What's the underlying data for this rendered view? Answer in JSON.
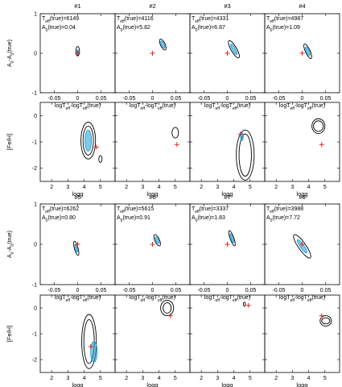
{
  "chart_data": {
    "type": "contour",
    "figure": {
      "blocks": [
        {
          "panel_labels": [
            "#1",
            "#2",
            "#3",
            "#4"
          ],
          "top": {
            "ylabel": "A0-A0(true)",
            "xlabel": "logTeff-logTeff(true)",
            "xlim": [
              -0.08,
              0.08
            ],
            "ylim": [
              -1,
              1
            ],
            "xticks": [
              -0.05,
              0,
              0.05
            ],
            "xtick_labels": [
              "-0.05",
              "0",
              "0.05"
            ],
            "yticks": [
              -1,
              0,
              1
            ],
            "ytick_labels": [
              "-1",
              "0",
              "1"
            ]
          },
          "bottom": {
            "ylabel": "[Fe/H]",
            "xlabel": "logg",
            "xlim": [
              1.3,
              5.9
            ],
            "ylim": [
              -2.5,
              0.5
            ],
            "xticks": [
              2,
              3,
              4,
              5
            ],
            "xtick_labels": [
              "2",
              "3",
              "4",
              "5"
            ],
            "yticks": [
              -2,
              -1,
              0
            ],
            "ytick_labels": [
              "-2",
              "-1",
              "0"
            ]
          }
        },
        {
          "panel_labels": [
            "#5",
            "#6",
            "#7",
            "#8"
          ],
          "top": {
            "ylabel": "A0-A0(true)",
            "xlabel": "logTeff-logTeff(true)",
            "xlim": [
              -0.08,
              0.08
            ],
            "ylim": [
              -1,
              1
            ],
            "xticks": [
              -0.05,
              0,
              0.05
            ],
            "xtick_labels": [
              "-0.05",
              "0",
              "0.05"
            ],
            "yticks": [
              -1,
              0,
              1
            ],
            "ytick_labels": [
              "-1",
              "0",
              "1"
            ]
          },
          "bottom": {
            "ylabel": "[Fe/H]",
            "xlabel": "logg",
            "xlim": [
              1.3,
              5.9
            ],
            "ylim": [
              -2.5,
              0.5
            ],
            "xticks": [
              2,
              3,
              4,
              5
            ],
            "xtick_labels": [
              "2",
              "3",
              "4",
              "5"
            ],
            "yticks": [
              -2,
              -1,
              0
            ],
            "ytick_labels": [
              "-2",
              "-1",
              "0"
            ]
          }
        }
      ]
    },
    "stars": [
      {
        "label": "#1",
        "teff_text": "6149",
        "a0_text": "0.04",
        "top": {
          "true": [
            0,
            0
          ],
          "contours": [
            {
              "center": [
                0.0,
                0.05
              ],
              "half_width": [
                0.004,
                0.12
              ],
              "angle": 0,
              "style": "dark"
            },
            {
              "center": [
                0.0,
                0.03
              ],
              "half_width": [
                0.002,
                0.06
              ],
              "angle": 0,
              "style": "blue"
            }
          ]
        },
        "bottom": {
          "true": [
            4.75,
            -1.2
          ],
          "contours": [
            {
              "center": [
                4.25,
                -0.95
              ],
              "half_width": [
                0.45,
                0.7
              ],
              "angle": 0,
              "style": "dark"
            },
            {
              "center": [
                4.25,
                -0.95
              ],
              "half_width": [
                0.32,
                0.55
              ],
              "angle": 0,
              "style": "dark"
            },
            {
              "center": [
                4.25,
                -0.95
              ],
              "half_width": [
                0.2,
                0.4
              ],
              "angle": 0,
              "style": "blue"
            },
            {
              "center": [
                5.0,
                -1.65
              ],
              "half_width": [
                0.1,
                0.13
              ],
              "angle": 0,
              "style": "dark"
            }
          ]
        }
      },
      {
        "label": "#2",
        "teff_text": "4116",
        "a0_text": "5.82",
        "top": {
          "true": [
            0,
            0
          ],
          "contours": [
            {
              "center": [
                0.022,
                0.22
              ],
              "half_width": [
                0.005,
                0.15
              ],
              "angle": 25,
              "style": "dark"
            },
            {
              "center": [
                0.022,
                0.22
              ],
              "half_width": [
                0.003,
                0.1
              ],
              "angle": 25,
              "style": "blue"
            }
          ]
        },
        "bottom": {
          "true": [
            5.1,
            -1.1
          ],
          "contours": [
            {
              "center": [
                5.0,
                -0.65
              ],
              "half_width": [
                0.2,
                0.2
              ],
              "angle": 0,
              "style": "dark"
            }
          ]
        }
      },
      {
        "label": "#3",
        "teff_text": "4331",
        "a0_text": "6.87",
        "top": {
          "true": [
            0,
            0
          ],
          "contours": [
            {
              "center": [
                0.014,
                0.1
              ],
              "half_width": [
                0.006,
                0.25
              ],
              "angle": 30,
              "style": "dark"
            },
            {
              "center": [
                0.014,
                0.1
              ],
              "half_width": [
                0.003,
                0.15
              ],
              "angle": 30,
              "style": "blue"
            }
          ]
        },
        "bottom": {
          "true": [
            4.4,
            -0.7
          ],
          "contours": [
            {
              "center": [
                4.7,
                -1.5
              ],
              "half_width": [
                0.55,
                0.95
              ],
              "angle": 0,
              "style": "dark"
            },
            {
              "center": [
                4.7,
                -1.5
              ],
              "half_width": [
                0.38,
                0.8
              ],
              "angle": 0,
              "style": "dark"
            },
            {
              "center": [
                4.5,
                -0.8
              ],
              "half_width": [
                0.08,
                0.15
              ],
              "angle": 0,
              "style": "blue"
            }
          ]
        }
      },
      {
        "label": "#4",
        "teff_text": "4987",
        "a0_text": "1.09",
        "top": {
          "true": [
            0,
            0
          ],
          "contours": [
            {
              "center": [
                0.012,
                0.05
              ],
              "half_width": [
                0.005,
                0.2
              ],
              "angle": 25,
              "style": "dark"
            },
            {
              "center": [
                0.012,
                0.05
              ],
              "half_width": [
                0.003,
                0.12
              ],
              "angle": 25,
              "style": "blue"
            }
          ]
        },
        "bottom": {
          "true": [
            4.8,
            -1.1
          ],
          "contours": [
            {
              "center": [
                4.6,
                -0.4
              ],
              "half_width": [
                0.4,
                0.28
              ],
              "angle": 0,
              "style": "dark"
            },
            {
              "center": [
                4.6,
                -0.4
              ],
              "half_width": [
                0.3,
                0.2
              ],
              "angle": 0,
              "style": "dark"
            }
          ]
        }
      },
      {
        "label": "#5",
        "teff_text": "6262",
        "a0_text": "0.80",
        "top": {
          "true": [
            0,
            0
          ],
          "contours": [
            {
              "center": [
                -0.003,
                -0.1
              ],
              "half_width": [
                0.004,
                0.18
              ],
              "angle": 15,
              "style": "dark"
            },
            {
              "center": [
                -0.003,
                -0.1
              ],
              "half_width": [
                0.002,
                0.1
              ],
              "angle": 15,
              "style": "blue"
            }
          ]
        },
        "bottom": {
          "true": [
            4.4,
            -1.5
          ],
          "contours": [
            {
              "center": [
                4.3,
                -1.3
              ],
              "half_width": [
                0.45,
                1.05
              ],
              "angle": 0,
              "style": "dark"
            },
            {
              "center": [
                4.3,
                -1.3
              ],
              "half_width": [
                0.32,
                0.85
              ],
              "angle": 0,
              "style": "dark"
            },
            {
              "center": [
                4.6,
                -1.7
              ],
              "half_width": [
                0.2,
                0.4
              ],
              "angle": 0,
              "style": "blue"
            }
          ]
        }
      },
      {
        "label": "#6",
        "teff_text": "5615",
        "a0_text": "0.91",
        "top": {
          "true": [
            0,
            0
          ],
          "contours": [
            {
              "center": [
                0.01,
                0.1
              ],
              "half_width": [
                0.005,
                0.15
              ],
              "angle": 25,
              "style": "dark"
            },
            {
              "center": [
                0.01,
                0.1
              ],
              "half_width": [
                0.003,
                0.09
              ],
              "angle": 25,
              "style": "blue"
            }
          ]
        },
        "bottom": {
          "true": [
            4.7,
            -0.3
          ],
          "contours": [
            {
              "center": [
                4.5,
                0.0
              ],
              "half_width": [
                0.4,
                0.3
              ],
              "angle": 0,
              "style": "dark"
            },
            {
              "center": [
                4.5,
                0.0
              ],
              "half_width": [
                0.25,
                0.2
              ],
              "angle": 0,
              "style": "dark"
            }
          ]
        }
      },
      {
        "label": "#7",
        "teff_text": "3337",
        "a0_text": "1.83",
        "top": {
          "true": [
            0,
            0
          ],
          "contours": [
            {
              "center": [
                0.01,
                0.15
              ],
              "half_width": [
                0.004,
                0.2
              ],
              "angle": 20,
              "style": "dark"
            },
            {
              "center": [
                0.01,
                0.15
              ],
              "half_width": [
                0.002,
                0.12
              ],
              "angle": 20,
              "style": "blue"
            }
          ]
        },
        "bottom": {
          "true": [
            4.9,
            0.1
          ],
          "contours": [
            {
              "center": [
                4.65,
                0.15
              ],
              "half_width": [
                0.06,
                0.08
              ],
              "angle": 0,
              "style": "dark"
            }
          ]
        }
      },
      {
        "label": "#8",
        "teff_text": "3988",
        "a0_text": "7.72",
        "top": {
          "true": [
            0,
            0
          ],
          "contours": [
            {
              "center": [
                0.0,
                -0.05
              ],
              "half_width": [
                0.008,
                0.35
              ],
              "angle": 35,
              "style": "dark"
            },
            {
              "center": [
                0.0,
                -0.05
              ],
              "half_width": [
                0.004,
                0.2
              ],
              "angle": 35,
              "style": "blue"
            }
          ]
        },
        "bottom": {
          "true": [
            4.8,
            -0.3
          ],
          "contours": [
            {
              "center": [
                5.05,
                -0.5
              ],
              "half_width": [
                0.35,
                0.2
              ],
              "angle": 0,
              "style": "dark"
            },
            {
              "center": [
                5.05,
                -0.5
              ],
              "half_width": [
                0.25,
                0.12
              ],
              "angle": 0,
              "style": "dark"
            }
          ]
        }
      }
    ],
    "colors": {
      "true_marker": "#e8231c",
      "contour_dark": "#000000",
      "contour_blue": "#1f9bd6"
    }
  }
}
